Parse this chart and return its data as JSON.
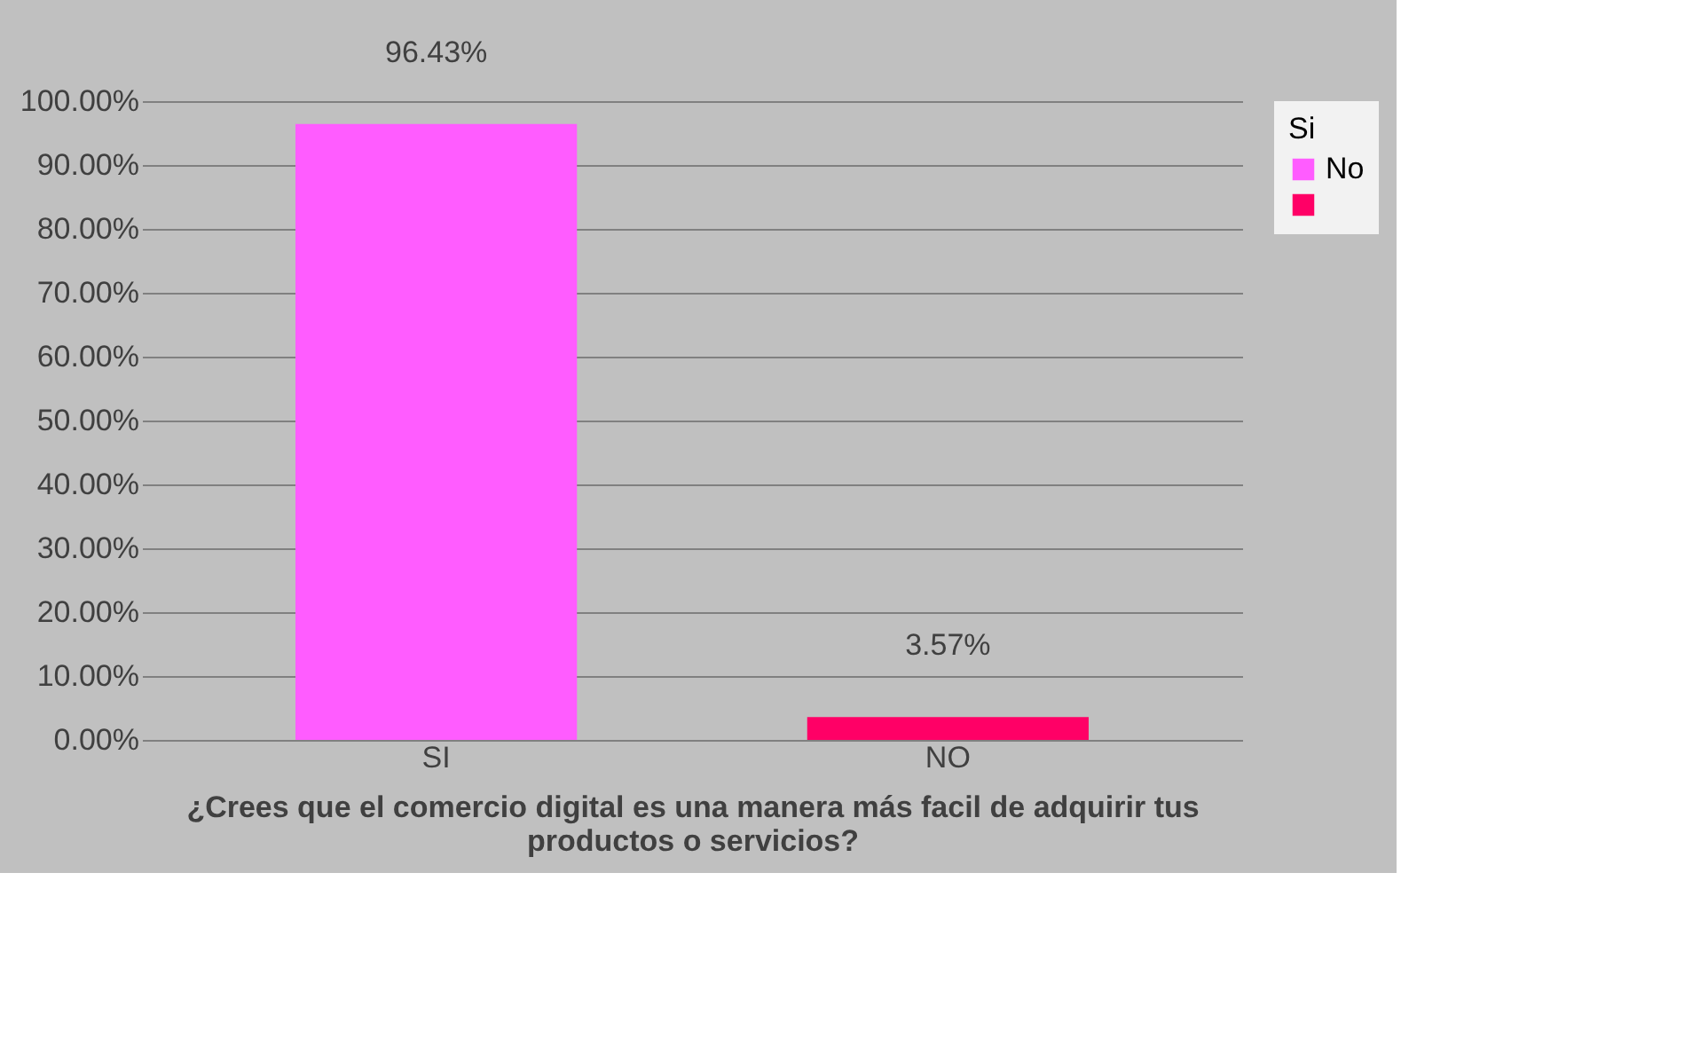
{
  "chart_data": {
    "type": "bar",
    "xlabel": "¿Crees que el comercio digital es una manera más facil de adquirir tus productos o servicios?",
    "categories": [
      "SI",
      "NO"
    ],
    "series": [
      {
        "name": "No",
        "color": "#ff5cff",
        "values": [
          96.43,
          null
        ],
        "value_labels": [
          "96.43%",
          null
        ]
      },
      {
        "color": "#ff0066",
        "values": [
          null,
          3.57
        ],
        "value_labels": [
          null,
          "3.57%"
        ]
      }
    ],
    "legend_title": "Si",
    "legend": "right",
    "ylim": [
      0,
      100
    ],
    "yticks": [
      {
        "value": 0,
        "label": "0.00%"
      },
      {
        "value": 10,
        "label": "10.00%"
      },
      {
        "value": 20,
        "label": "20.00%"
      },
      {
        "value": 30,
        "label": "30.00%"
      },
      {
        "value": 40,
        "label": "40.00%"
      },
      {
        "value": 50,
        "label": "50.00%"
      },
      {
        "value": 60,
        "label": "60.00%"
      },
      {
        "value": 70,
        "label": "70.00%"
      },
      {
        "value": 80,
        "label": "80.00%"
      },
      {
        "value": 90,
        "label": "90.00%"
      },
      {
        "value": 100,
        "label": "100.00%"
      }
    ],
    "grid": "y"
  }
}
